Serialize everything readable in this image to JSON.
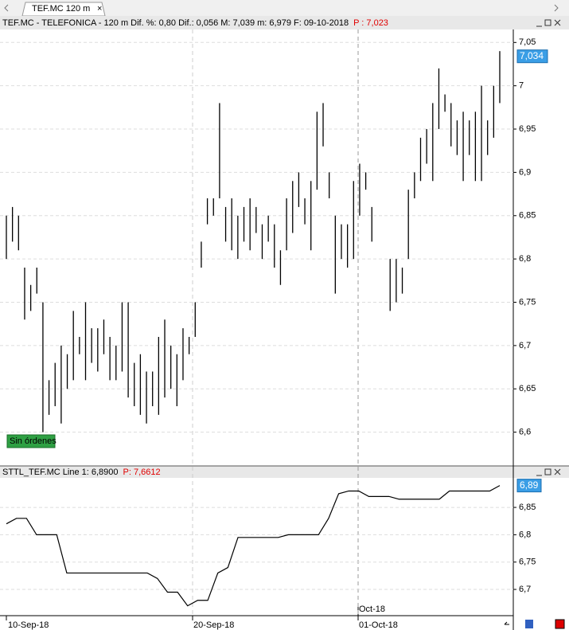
{
  "tab": {
    "label": "TEF.MC 120 m"
  },
  "top_panel": {
    "title": "TEF.MC - TELEFONICA -  120 m  Dif. %: 0,80  Dif.: 0,056  M: 7,039  m: 6,979  F: 09-10-2018",
    "price": "P : 7,023",
    "badge": "Sin órdenes"
  },
  "bottom_panel": {
    "title": "STTL_TEF.MC  Line 1: 6,8900",
    "price": "P: 7,6612"
  },
  "x_axis": {
    "labels": [
      "10-Sep-18",
      "20-Sep-18",
      "01-Oct-18"
    ],
    "month_label": "Oct-18"
  },
  "chart_data": [
    {
      "type": "ohlc",
      "color": "#000000",
      "grid": true,
      "ylim": [
        6.561,
        7.065
      ],
      "yticks": [
        {
          "value": 6.6,
          "label": "6,6"
        },
        {
          "value": 6.65,
          "label": "6,65"
        },
        {
          "value": 6.7,
          "label": "6,7"
        },
        {
          "value": 6.75,
          "label": "6,75"
        },
        {
          "value": 6.8,
          "label": "6,8"
        },
        {
          "value": 6.85,
          "label": "6,85"
        },
        {
          "value": 6.9,
          "label": "6,9"
        },
        {
          "value": 6.95,
          "label": "6,95"
        },
        7,
        {
          "value": 7.05,
          "label": "7,05"
        }
      ],
      "high": [
        6.85,
        6.86,
        6.85,
        6.79,
        6.77,
        6.79,
        6.75,
        6.66,
        6.68,
        6.7,
        6.69,
        6.74,
        6.71,
        6.75,
        6.72,
        6.72,
        6.73,
        6.71,
        6.7,
        6.75,
        6.75,
        6.68,
        6.69,
        6.67,
        6.67,
        6.71,
        6.73,
        6.7,
        6.69,
        6.72,
        6.71,
        6.75,
        6.82,
        6.87,
        6.87,
        6.98,
        6.86,
        6.87,
        6.85,
        6.86,
        6.87,
        6.86,
        6.84,
        6.85,
        6.84,
        6.81,
        6.87,
        6.89,
        6.9,
        6.87,
        6.89,
        6.97,
        6.98,
        6.9,
        6.85,
        6.84,
        6.84,
        6.89,
        6.91,
        6.9,
        6.86,
        null,
        null,
        6.8,
        6.8,
        6.79,
        6.88,
        6.9,
        6.94,
        6.95,
        6.98,
        7.02,
        6.99,
        6.98,
        6.96,
        6.97,
        6.96,
        6.97,
        7.0,
        6.96,
        7.0,
        7.04
      ],
      "low": [
        6.8,
        6.82,
        6.81,
        6.73,
        6.74,
        6.76,
        6.6,
        6.62,
        6.63,
        6.61,
        6.65,
        6.66,
        6.69,
        6.66,
        6.68,
        6.67,
        6.69,
        6.66,
        6.66,
        6.67,
        6.64,
        6.63,
        6.62,
        6.61,
        6.63,
        6.62,
        6.64,
        6.65,
        6.63,
        6.66,
        6.69,
        6.71,
        6.79,
        6.84,
        6.85,
        6.87,
        6.82,
        6.81,
        6.8,
        6.82,
        6.81,
        6.83,
        6.8,
        6.82,
        6.79,
        6.77,
        6.81,
        6.83,
        6.86,
        6.84,
        6.81,
        6.88,
        6.93,
        6.87,
        6.76,
        6.8,
        6.79,
        6.8,
        6.85,
        6.88,
        6.82,
        null,
        null,
        6.74,
        6.75,
        6.76,
        6.8,
        6.87,
        6.89,
        6.91,
        6.89,
        6.95,
        6.97,
        6.93,
        6.92,
        6.89,
        6.92,
        6.89,
        6.89,
        6.92,
        6.94,
        6.98
      ],
      "current": 7.034,
      "current_label": "7,034"
    },
    {
      "type": "line",
      "color": "#000000",
      "grid": true,
      "ylim": [
        6.652,
        6.904
      ],
      "yticks": [
        {
          "value": 6.7,
          "label": "6,7"
        },
        {
          "value": 6.75,
          "label": "6,75"
        },
        {
          "value": 6.8,
          "label": "6,8"
        },
        {
          "value": 6.85,
          "label": "6,85"
        }
      ],
      "values": [
        6.82,
        6.83,
        6.83,
        6.8,
        6.8,
        6.8,
        6.73,
        6.73,
        6.73,
        6.73,
        6.73,
        6.73,
        6.73,
        6.73,
        6.73,
        6.72,
        6.695,
        6.695,
        6.67,
        6.68,
        6.68,
        6.73,
        6.74,
        6.795,
        6.795,
        6.795,
        6.795,
        6.795,
        6.8,
        6.8,
        6.8,
        6.8,
        6.83,
        6.875,
        6.88,
        6.88,
        6.87,
        6.87,
        6.87,
        6.865,
        6.865,
        6.865,
        6.865,
        6.865,
        6.88,
        6.88,
        6.88,
        6.88,
        6.88,
        6.89
      ],
      "current": 6.89,
      "current_label": "6,89"
    }
  ]
}
